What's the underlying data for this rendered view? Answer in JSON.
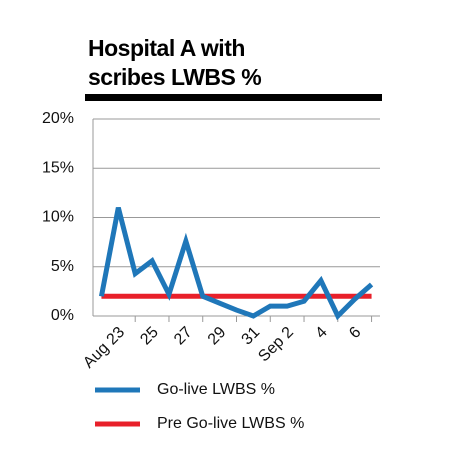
{
  "chart_data": {
    "type": "line",
    "title": "Hospital A with scribes LWBS %",
    "categories": [
      null,
      "Aug 23",
      null,
      "25",
      null,
      "27",
      null,
      "29",
      null,
      "31",
      null,
      "Sep 2",
      null,
      "4",
      null,
      "6",
      null
    ],
    "series": [
      {
        "name": "Go-live LWBS %",
        "color": "#1f77b9",
        "values": [
          2,
          11,
          4.3,
          5.6,
          2.2,
          7.6,
          2,
          1.3,
          0.6,
          0,
          1,
          1,
          1.5,
          3.6,
          0,
          1.7,
          3.2
        ]
      },
      {
        "name": "Pre Go-live LWBS %",
        "color": "#e8202a",
        "values": [
          2,
          2,
          2,
          2,
          2,
          2,
          2,
          2,
          2,
          2,
          2,
          2,
          2,
          2,
          2,
          2,
          2
        ]
      }
    ],
    "ylim": [
      0,
      20
    ],
    "yticks": [
      {
        "value": 0,
        "label": "0%"
      },
      {
        "value": 5,
        "label": "5%"
      },
      {
        "value": 10,
        "label": "10%"
      },
      {
        "value": 15,
        "label": "15%"
      },
      {
        "value": 20,
        "label": "20%"
      }
    ],
    "grid": true
  }
}
